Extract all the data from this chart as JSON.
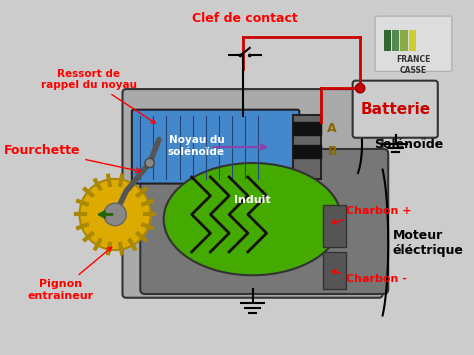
{
  "bg_color": "#f0f0e8",
  "title": "",
  "labels": {
    "clef_de_contact": "Clef de contact",
    "ressort": "Ressort de\nrappel du noyau",
    "fourchette": "Fourchette",
    "noyau": "Noyau du\nsolénoïde",
    "solenoide": "Solénoïde",
    "batterie": "Batterie",
    "charbon_plus": "Charbon +",
    "charbon_moins": "Charbon -",
    "moteur": "Moteur\néléctrique",
    "induit": "Induit",
    "pignon": "Pignon\nentraineur",
    "A": "A",
    "B": "B"
  },
  "colors": {
    "red_label": "#ff0000",
    "black_label": "#000000",
    "blue_body": "#4488cc",
    "yellow_gear": "#ddaa00",
    "green_rotor": "#44aa00",
    "gray_body": "#888888",
    "dark_gray": "#444444",
    "batterie_bg": "#cccccc",
    "batterie_red": "#cc0000",
    "wire_red": "#cc0000",
    "wire_black": "#000000",
    "purple_arrow": "#8844aa",
    "green_arrow": "#226600",
    "white": "#ffffff",
    "logo_bg": "#dddddd"
  }
}
